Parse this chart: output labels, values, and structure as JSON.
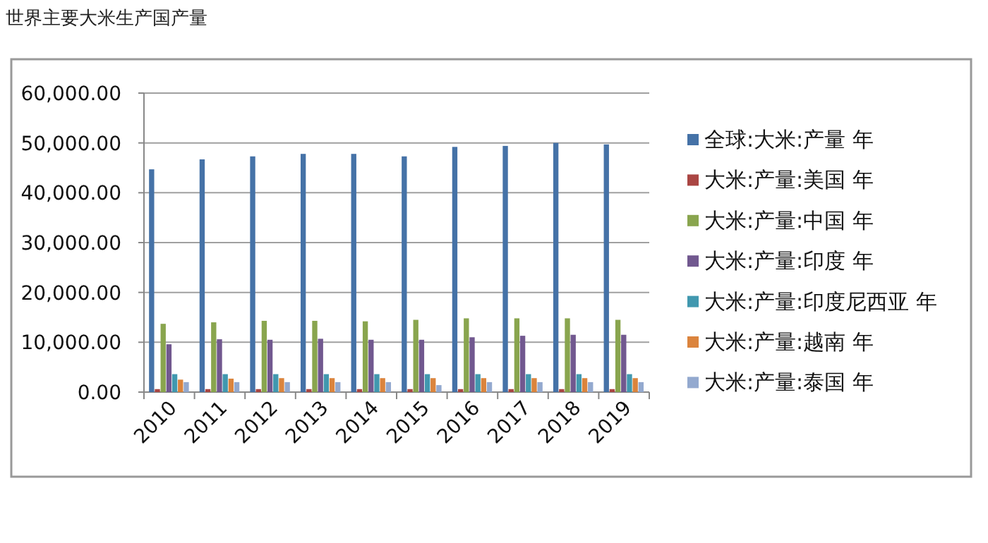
{
  "chart_data": {
    "type": "bar",
    "title": "世界主要大米生产国产量",
    "categories": [
      "2010",
      "2011",
      "2012",
      "2013",
      "2014",
      "2015",
      "2016",
      "2017",
      "2018",
      "2019"
    ],
    "series": [
      {
        "name": "全球:大米:产量 年",
        "color": "#4572a7",
        "values": [
          44700,
          46700,
          47300,
          47800,
          47800,
          47300,
          49200,
          49400,
          50000,
          49700
        ]
      },
      {
        "name": "大米:产量:美国 年",
        "color": "#aa4643",
        "values": [
          600,
          600,
          600,
          600,
          600,
          600,
          600,
          600,
          600,
          600
        ]
      },
      {
        "name": "大米:产量:中国 年",
        "color": "#89a54e",
        "values": [
          13700,
          14000,
          14300,
          14300,
          14200,
          14500,
          14800,
          14800,
          14800,
          14500
        ]
      },
      {
        "name": "大米:产量:印度 年",
        "color": "#71588f",
        "values": [
          9600,
          10600,
          10500,
          10700,
          10500,
          10500,
          11000,
          11300,
          11500,
          11500
        ]
      },
      {
        "name": "大米:产量:印度尼西亚 年",
        "color": "#4198af",
        "values": [
          3600,
          3600,
          3600,
          3600,
          3600,
          3600,
          3600,
          3600,
          3600,
          3600
        ]
      },
      {
        "name": "大米:产量:越南 年",
        "color": "#db843d",
        "values": [
          2500,
          2700,
          2800,
          2800,
          2800,
          2800,
          2800,
          2800,
          2800,
          2800
        ]
      },
      {
        "name": "大米:产量:泰国 年",
        "color": "#93a9cf",
        "values": [
          2000,
          2000,
          2000,
          2000,
          2000,
          1400,
          2000,
          2000,
          2000,
          2000
        ]
      }
    ],
    "ylim": [
      0,
      60000
    ],
    "yticks": [
      {
        "value": 0,
        "label": "0.00"
      },
      {
        "value": 10000,
        "label": "10,000.00"
      },
      {
        "value": 20000,
        "label": "20,000.00"
      },
      {
        "value": 30000,
        "label": "30,000.00"
      },
      {
        "value": 40000,
        "label": "40,000.00"
      },
      {
        "value": 50000,
        "label": "50,000.00"
      },
      {
        "value": 60000,
        "label": "60,000.00"
      }
    ],
    "grid": "y",
    "legend": "right"
  }
}
